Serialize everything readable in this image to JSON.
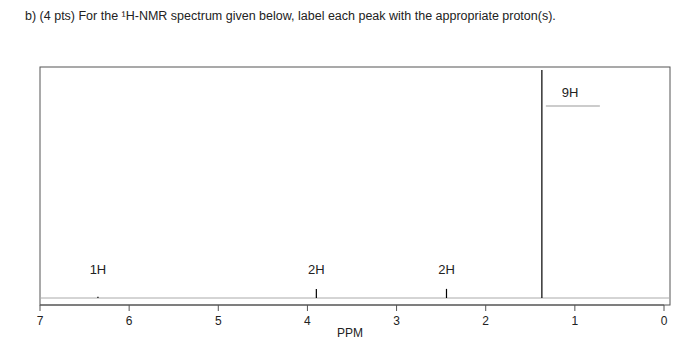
{
  "question": "b)  (4 pts) For the ¹H-NMR spectrum given below, label each peak with the appropriate proton(s).",
  "chart_data": {
    "type": "spectrum",
    "xlabel": "PPM",
    "x": [
      6.35,
      3.9,
      2.44,
      1.37
    ],
    "values": [
      0.5,
      4,
      4,
      100
    ],
    "annotations": [
      "1H",
      "2H",
      "2H",
      "9H"
    ],
    "color": "#000000",
    "xlim": [
      7,
      0
    ],
    "xticks": [
      7,
      6,
      5,
      4,
      3,
      2,
      1,
      0
    ],
    "ylim": [
      0,
      100
    ],
    "tick_labels": "x",
    "grid": false
  }
}
